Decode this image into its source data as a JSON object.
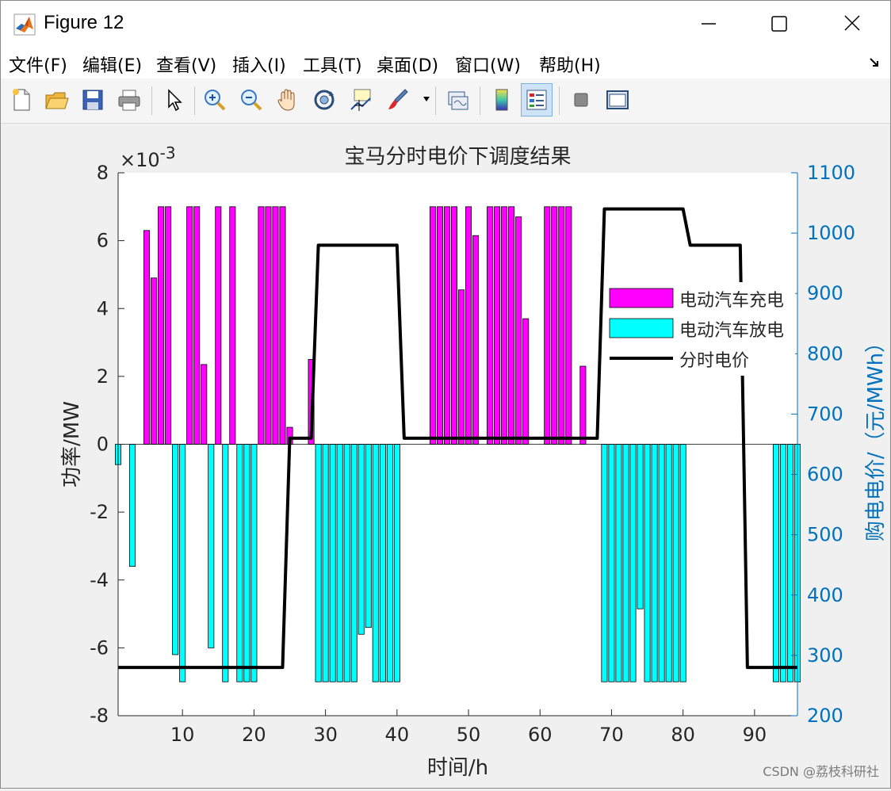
{
  "window": {
    "title": "Figure 12",
    "controls": {
      "minimize": "minimize-icon",
      "maximize": "maximize-icon",
      "close": "close-icon"
    }
  },
  "menu": {
    "items": [
      "文件(F)",
      "编辑(E)",
      "查看(V)",
      "插入(I)",
      "工具(T)",
      "桌面(D)",
      "窗口(W)",
      "帮助(H)"
    ]
  },
  "toolbar": {
    "icons": [
      "new-figure-icon",
      "open-file-icon",
      "save-icon",
      "print-icon",
      "pointer-icon",
      "zoom-in-icon",
      "zoom-out-icon",
      "pan-icon",
      "rotate-3d-icon",
      "data-cursor-icon",
      "brush-icon",
      "link-plot-icon",
      "colorbar-icon",
      "legend-icon",
      "hide-plot-tools-icon",
      "show-plot-tools-icon"
    ]
  },
  "colors": {
    "charge": "#ff00ff",
    "discharge": "#00ffff",
    "price": "#000000",
    "right_axis": "#0072bd"
  },
  "watermark": "CSDN @荔枝科研社",
  "chart_data": {
    "type": "bar",
    "title": "宝马分时电价下调度结果",
    "xlabel": "时间/h",
    "ylabel": "功率/MW",
    "ylabel_right": "购电电价/（元/MWh）",
    "y_exponent": "×10-3",
    "xlim": [
      1,
      96
    ],
    "ylim": [
      -8,
      8
    ],
    "ylim_right": [
      200,
      1100
    ],
    "xticks": [
      10,
      20,
      30,
      40,
      50,
      60,
      70,
      80,
      90
    ],
    "yticks": [
      -8,
      -6,
      -4,
      -2,
      0,
      2,
      4,
      6,
      8
    ],
    "yticks_right": [
      200,
      300,
      400,
      500,
      600,
      700,
      800,
      900,
      1000,
      1100
    ],
    "legend_position": "right",
    "series": [
      {
        "name": "电动汽车充电",
        "kind": "bar",
        "points": [
          [
            5,
            6.3
          ],
          [
            6,
            4.9
          ],
          [
            7,
            7
          ],
          [
            8,
            7
          ],
          [
            11,
            7
          ],
          [
            12,
            7
          ],
          [
            13,
            2.35
          ],
          [
            15,
            7
          ],
          [
            17,
            7
          ],
          [
            21,
            7
          ],
          [
            22,
            7
          ],
          [
            23,
            7
          ],
          [
            24,
            7
          ],
          [
            25,
            0.5
          ],
          [
            28,
            2.5
          ],
          [
            45,
            7
          ],
          [
            46,
            7
          ],
          [
            47,
            7
          ],
          [
            48,
            7
          ],
          [
            49,
            4.55
          ],
          [
            50,
            7
          ],
          [
            51,
            6.15
          ],
          [
            53,
            7
          ],
          [
            54,
            7
          ],
          [
            55,
            7
          ],
          [
            56,
            7
          ],
          [
            57,
            6.7
          ],
          [
            58,
            3.7
          ],
          [
            61,
            7
          ],
          [
            62,
            7
          ],
          [
            63,
            7
          ],
          [
            64,
            7
          ],
          [
            66,
            2.3
          ]
        ]
      },
      {
        "name": "电动汽车放电",
        "kind": "bar",
        "points": [
          [
            1,
            -0.6
          ],
          [
            3,
            -3.6
          ],
          [
            9,
            -6.2
          ],
          [
            10,
            -7
          ],
          [
            14,
            -6
          ],
          [
            16,
            -7
          ],
          [
            18,
            -7
          ],
          [
            19,
            -7
          ],
          [
            20,
            -7
          ],
          [
            29,
            -7
          ],
          [
            30,
            -7
          ],
          [
            31,
            -7
          ],
          [
            32,
            -7
          ],
          [
            33,
            -7
          ],
          [
            34,
            -7
          ],
          [
            35,
            -5.6
          ],
          [
            36,
            -5.4
          ],
          [
            37,
            -7
          ],
          [
            38,
            -7
          ],
          [
            39,
            -7
          ],
          [
            40,
            -7
          ],
          [
            69,
            -7
          ],
          [
            70,
            -7
          ],
          [
            71,
            -7
          ],
          [
            72,
            -7
          ],
          [
            73,
            -7
          ],
          [
            74,
            -4.85
          ],
          [
            75,
            -7
          ],
          [
            76,
            -7
          ],
          [
            77,
            -7
          ],
          [
            78,
            -7
          ],
          [
            79,
            -7
          ],
          [
            80,
            -7
          ],
          [
            93,
            -7
          ],
          [
            94,
            -7
          ],
          [
            95,
            -7
          ],
          [
            96,
            -7
          ]
        ]
      },
      {
        "name": "分时电价",
        "kind": "line",
        "axis": "right",
        "x": [
          1,
          24,
          25,
          28,
          29,
          40,
          41,
          68,
          69,
          80,
          81,
          88,
          89,
          96
        ],
        "y": [
          280,
          280,
          660,
          660,
          980,
          980,
          660,
          660,
          1040,
          1040,
          980,
          980,
          280,
          280
        ]
      }
    ]
  }
}
